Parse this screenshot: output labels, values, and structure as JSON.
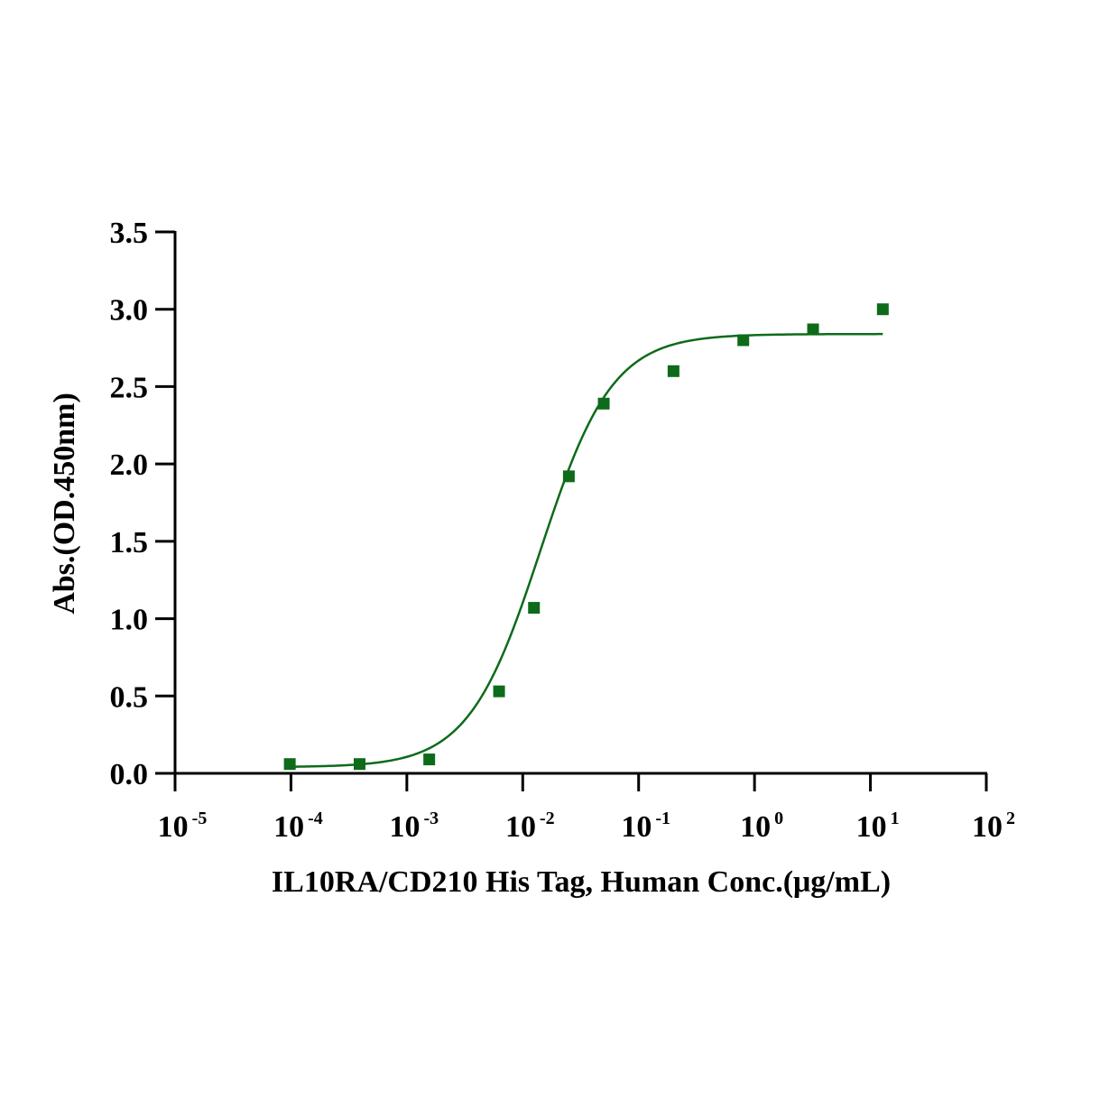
{
  "chart_data": {
    "type": "scatter",
    "title": "",
    "xlabel": "IL10RA/CD210 His Tag, Human  Conc.(μg/mL)",
    "ylabel": "Abs.(OD.450nm)",
    "x_scale": "log10",
    "xlim": [
      1e-05,
      100
    ],
    "ylim": [
      0,
      3.5
    ],
    "x_ticks": [
      {
        "base": "10",
        "exp": "-5"
      },
      {
        "base": "10",
        "exp": "-4"
      },
      {
        "base": "10",
        "exp": "-3"
      },
      {
        "base": "10",
        "exp": "-2"
      },
      {
        "base": "10",
        "exp": "-1"
      },
      {
        "base": "10",
        "exp": "0"
      },
      {
        "base": "10",
        "exp": "1"
      },
      {
        "base": "10",
        "exp": "2"
      }
    ],
    "y_ticks": [
      "0.0",
      "0.5",
      "1.0",
      "1.5",
      "2.0",
      "2.5",
      "3.0",
      "3.5"
    ],
    "grid": false,
    "color": "#0d6b1a",
    "series": [
      {
        "x": [
          9.77e-05,
          0.000391,
          0.00156,
          0.00625,
          0.0125,
          0.025,
          0.05,
          0.2,
          0.8,
          3.2,
          12.8
        ],
        "y": [
          0.06,
          0.06,
          0.09,
          0.53,
          1.07,
          1.92,
          2.39,
          2.6,
          2.8,
          2.87,
          3.0
        ],
        "marker": "square"
      }
    ],
    "fit": {
      "model": "4PL",
      "bottom": 0.04,
      "top": 2.84,
      "ec50": 0.0142,
      "hill": 1.4,
      "x_range": [
        9.77e-05,
        12.8
      ]
    }
  }
}
